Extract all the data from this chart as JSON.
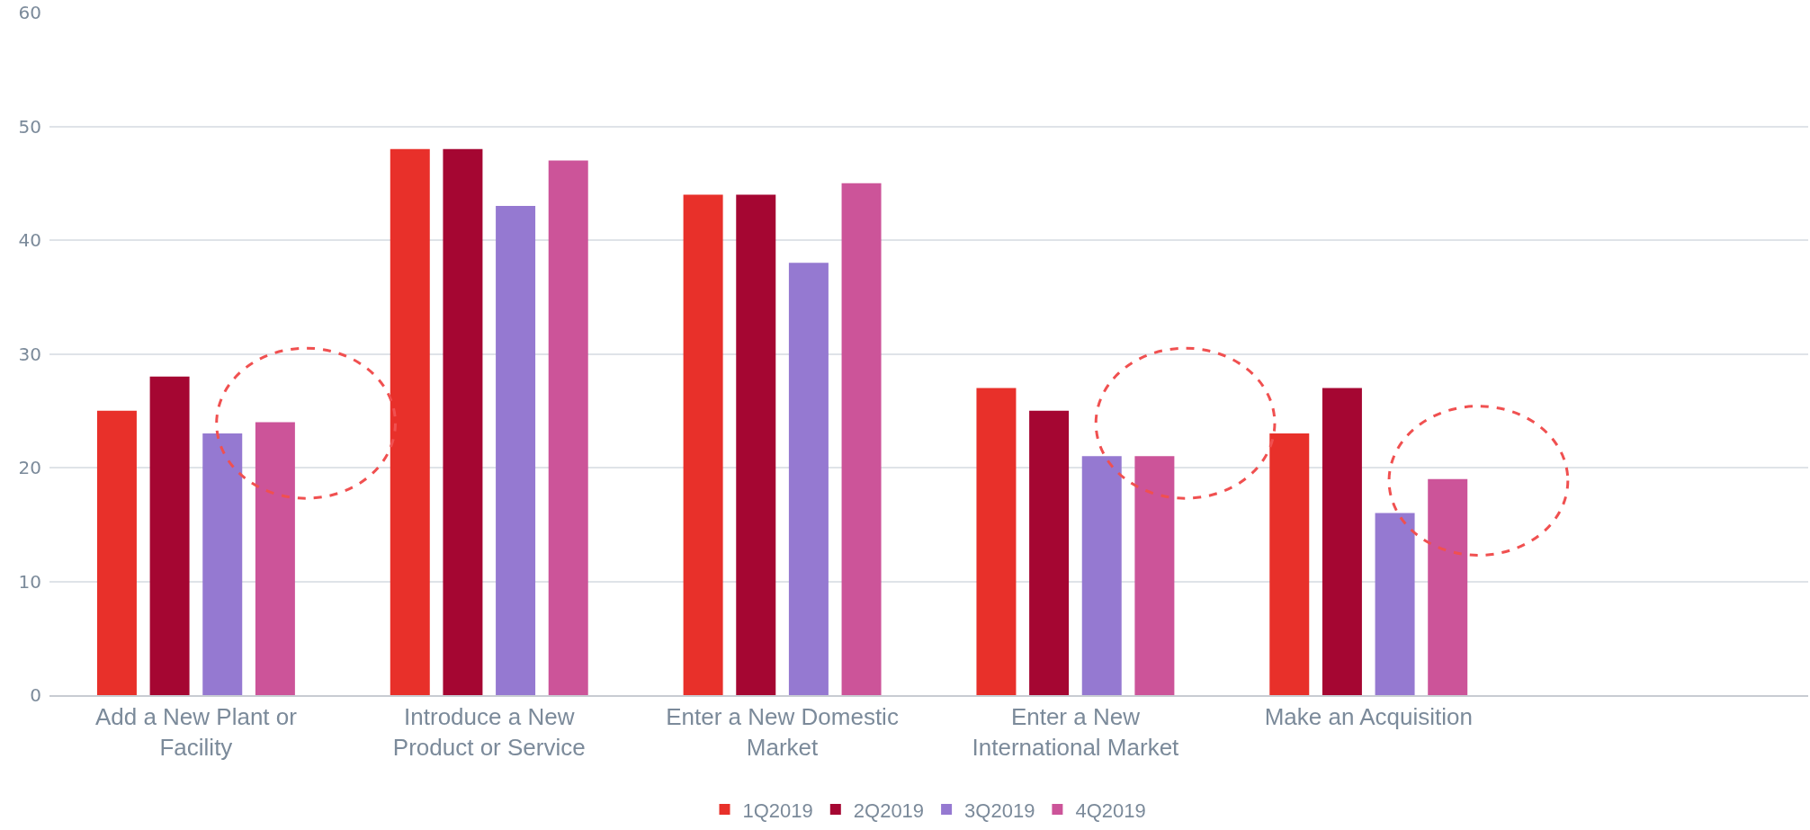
{
  "chart_data": {
    "type": "bar",
    "categories": [
      "Add a New Plant or Facility",
      "Introduce a New Product or Service",
      "Enter a New Domestic Market",
      "Enter a New International Market",
      "Make an Acquisition"
    ],
    "series": [
      {
        "name": "1Q2019",
        "color": "#e8302a",
        "values": [
          25,
          48,
          44,
          27,
          23
        ]
      },
      {
        "name": "2Q2019",
        "color": "#a50632",
        "values": [
          28,
          48,
          44,
          25,
          27
        ]
      },
      {
        "name": "3Q2019",
        "color": "#9579d1",
        "values": [
          23,
          43,
          38,
          21,
          16
        ]
      },
      {
        "name": "4Q2019",
        "color": "#cc5499",
        "values": [
          24,
          47,
          45,
          21,
          19
        ]
      }
    ],
    "ylim": [
      0,
      60
    ],
    "yticks": [
      0,
      10,
      20,
      30,
      40,
      50,
      60
    ],
    "grid": "y",
    "legend": "bottom"
  }
}
